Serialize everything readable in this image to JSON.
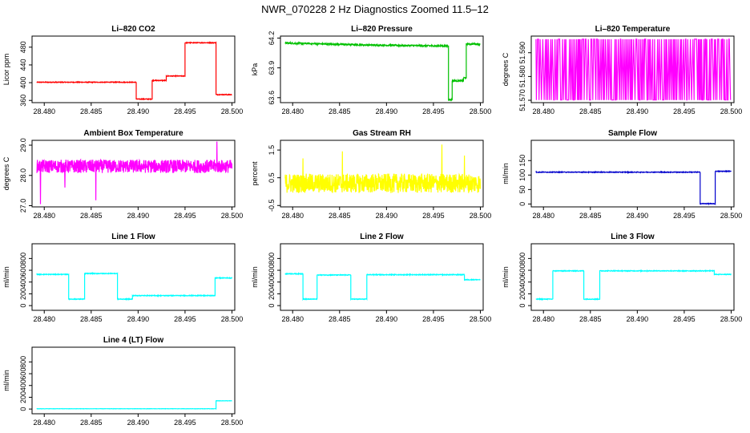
{
  "title": "NWR_070228  2 Hz Diagnostics Zoomed 11.5–12",
  "chart_data": [
    {
      "type": "line",
      "title": "Li–820 CO2",
      "ylabel": "Licor ppm",
      "color": "#ff0000",
      "xlim": [
        28.4787,
        28.5003
      ],
      "ylim": [
        355,
        505
      ],
      "yticks": [
        360,
        400,
        440,
        480
      ],
      "xticks": [
        28.48,
        28.485,
        28.49,
        28.495,
        28.5
      ],
      "xticklabels": [
        "28.480",
        "28.485",
        "28.490",
        "28.495",
        "28.500"
      ],
      "noise": 0.8,
      "segments": [
        {
          "x0": 28.4792,
          "x1": 28.4898,
          "y": 401
        },
        {
          "x0": 28.4898,
          "x1": 28.4915,
          "y": 363
        },
        {
          "x0": 28.4915,
          "x1": 28.493,
          "y": 405
        },
        {
          "x0": 28.493,
          "x1": 28.495,
          "y": 415
        },
        {
          "x0": 28.495,
          "x1": 28.4983,
          "y": 490
        },
        {
          "x0": 28.4983,
          "x1": 28.5,
          "y": 373
        }
      ]
    },
    {
      "type": "line",
      "title": "Li–820 Pressure",
      "ylabel": "kPa",
      "color": "#00c000",
      "xlim": [
        28.4787,
        28.5003
      ],
      "ylim": [
        63.55,
        64.22
      ],
      "yticks": [
        63.6,
        63.9,
        64.2
      ],
      "xticks": [
        28.48,
        28.485,
        28.49,
        28.495,
        28.5
      ],
      "xticklabels": [
        "28.480",
        "28.485",
        "28.490",
        "28.495",
        "28.500"
      ],
      "noise": 0.008,
      "segments": [
        {
          "x0": 28.4792,
          "x1": 28.488,
          "y0": 64.15,
          "y1": 64.13
        },
        {
          "x0": 28.488,
          "x1": 28.4966,
          "y0": 64.13,
          "y1": 64.12
        },
        {
          "x0": 28.4966,
          "x1": 28.497,
          "y": 63.58
        },
        {
          "x0": 28.497,
          "x1": 28.4982,
          "y": 63.77
        },
        {
          "x0": 28.4982,
          "x1": 28.4985,
          "y": 63.8
        },
        {
          "x0": 28.4985,
          "x1": 28.5,
          "y": 64.14
        }
      ]
    },
    {
      "type": "line",
      "title": "Li–820 Temperature",
      "ylabel": "degrees C",
      "color": "#ff00ff",
      "xlim": [
        28.4787,
        28.5003
      ],
      "ylim": [
        51.569,
        51.597
      ],
      "yticks": [
        51.57,
        51.58,
        51.59
      ],
      "yticklabels": [
        "51.570",
        "51.580",
        "51.590"
      ],
      "xticks": [
        28.48,
        28.485,
        28.49,
        28.495,
        28.5
      ],
      "xticklabels": [
        "28.480",
        "28.485",
        "28.490",
        "28.495",
        "28.500"
      ],
      "pattern": "toggle",
      "low": 51.5701,
      "high": 51.5957
    },
    {
      "type": "line",
      "title": "Ambient Box Temperature",
      "ylabel": "degrees C",
      "color": "#ff00ff",
      "xlim": [
        28.4787,
        28.5003
      ],
      "ylim": [
        26.96,
        29.16
      ],
      "yticks": [
        27.0,
        28.0,
        29.0
      ],
      "yticklabels": [
        "27.0",
        "28.0",
        "29.0"
      ],
      "xticks": [
        28.48,
        28.485,
        28.49,
        28.495,
        28.5
      ],
      "xticklabels": [
        "28.480",
        "28.485",
        "28.490",
        "28.495",
        "28.500"
      ],
      "noise": 0.22,
      "spikes": [
        [
          28.4796,
          27.05
        ],
        [
          28.4855,
          27.18
        ],
        [
          28.4984,
          29.12
        ],
        [
          28.4822,
          27.6
        ]
      ],
      "segments": [
        {
          "x0": 28.4792,
          "x1": 28.5,
          "y": 28.3
        }
      ]
    },
    {
      "type": "line",
      "title": "Gas Stream RH",
      "ylabel": "percent",
      "color": "#ffff00",
      "xlim": [
        28.4787,
        28.5003
      ],
      "ylim": [
        -0.55,
        1.85
      ],
      "yticks": [
        -0.5,
        0.5,
        1.5
      ],
      "yticklabels": [
        "-0.5",
        "0.5",
        "1.5"
      ],
      "xticks": [
        28.48,
        28.485,
        28.49,
        28.495,
        28.5
      ],
      "xticklabels": [
        "28.480",
        "28.485",
        "28.490",
        "28.495",
        "28.500"
      ],
      "noise": 0.35,
      "spikes": [
        [
          28.4959,
          1.7
        ],
        [
          28.4853,
          1.45
        ],
        [
          28.4811,
          1.2
        ],
        [
          28.4983,
          1.3
        ]
      ],
      "segments": [
        {
          "x0": 28.4792,
          "x1": 28.5,
          "y": 0.3
        }
      ]
    },
    {
      "type": "line",
      "title": "Sample Flow",
      "ylabel": "ml/min",
      "color": "#0000cc",
      "xlim": [
        28.4787,
        28.5003
      ],
      "ylim": [
        -10,
        220
      ],
      "yticks": [
        0,
        50,
        100,
        150
      ],
      "xticks": [
        28.48,
        28.485,
        28.49,
        28.495,
        28.5
      ],
      "xticklabels": [
        "28.480",
        "28.485",
        "28.490",
        "28.495",
        "28.500"
      ],
      "noise": 1.2,
      "segments": [
        {
          "x0": 28.4792,
          "x1": 28.4967,
          "y": 110
        },
        {
          "x0": 28.4967,
          "x1": 28.4983,
          "y": 1
        },
        {
          "x0": 28.4983,
          "x1": 28.5,
          "y": 113
        }
      ]
    },
    {
      "type": "line",
      "title": "Line 1 Flow",
      "ylabel": "ml/min",
      "color": "#00ffff",
      "xlim": [
        28.4787,
        28.5003
      ],
      "ylim": [
        -80,
        1050
      ],
      "yticks": [
        0,
        200,
        400,
        600,
        800
      ],
      "xticks": [
        28.48,
        28.485,
        28.49,
        28.495,
        28.5
      ],
      "xticklabels": [
        "28.480",
        "28.485",
        "28.490",
        "28.495",
        "28.500"
      ],
      "noise": 6,
      "segments": [
        {
          "x0": 28.4792,
          "x1": 28.4826,
          "y": 530
        },
        {
          "x0": 28.4826,
          "x1": 28.4843,
          "y": 110
        },
        {
          "x0": 28.4843,
          "x1": 28.4878,
          "y": 545
        },
        {
          "x0": 28.4878,
          "x1": 28.4894,
          "y": 110
        },
        {
          "x0": 28.4894,
          "x1": 28.4982,
          "y": 170
        },
        {
          "x0": 28.4982,
          "x1": 28.5,
          "y": 470
        }
      ]
    },
    {
      "type": "line",
      "title": "Line 2 Flow",
      "ylabel": "ml/min",
      "color": "#00ffff",
      "xlim": [
        28.4787,
        28.5003
      ],
      "ylim": [
        -80,
        1050
      ],
      "yticks": [
        0,
        200,
        400,
        600,
        800
      ],
      "xticks": [
        28.48,
        28.485,
        28.49,
        28.495,
        28.5
      ],
      "xticklabels": [
        "28.480",
        "28.485",
        "28.490",
        "28.495",
        "28.500"
      ],
      "noise": 6,
      "segments": [
        {
          "x0": 28.4792,
          "x1": 28.4811,
          "y": 540
        },
        {
          "x0": 28.4811,
          "x1": 28.4826,
          "y": 110
        },
        {
          "x0": 28.4826,
          "x1": 28.4862,
          "y": 520
        },
        {
          "x0": 28.4862,
          "x1": 28.4879,
          "y": 110
        },
        {
          "x0": 28.4879,
          "x1": 28.4983,
          "y": 525
        },
        {
          "x0": 28.4983,
          "x1": 28.5,
          "y": 440
        }
      ]
    },
    {
      "type": "line",
      "title": "Line 3 Flow",
      "ylabel": "ml/min",
      "color": "#00ffff",
      "xlim": [
        28.4787,
        28.5003
      ],
      "ylim": [
        -80,
        1050
      ],
      "yticks": [
        0,
        200,
        400,
        600,
        800
      ],
      "xticks": [
        28.48,
        28.485,
        28.49,
        28.495,
        28.5
      ],
      "xticklabels": [
        "28.480",
        "28.485",
        "28.490",
        "28.495",
        "28.500"
      ],
      "noise": 6,
      "segments": [
        {
          "x0": 28.4792,
          "x1": 28.481,
          "y": 110
        },
        {
          "x0": 28.481,
          "x1": 28.4843,
          "y": 590
        },
        {
          "x0": 28.4843,
          "x1": 28.486,
          "y": 110
        },
        {
          "x0": 28.486,
          "x1": 28.4982,
          "y": 590
        },
        {
          "x0": 28.4982,
          "x1": 28.5,
          "y": 530
        }
      ]
    },
    {
      "type": "line",
      "title": "Line 4 (LT) Flow",
      "ylabel": "ml/min",
      "color": "#00ffff",
      "xlim": [
        28.4787,
        28.5003
      ],
      "ylim": [
        -80,
        1050
      ],
      "yticks": [
        0,
        200,
        400,
        600,
        800
      ],
      "xticks": [
        28.48,
        28.485,
        28.49,
        28.495,
        28.5
      ],
      "xticklabels": [
        "28.480",
        "28.485",
        "28.490",
        "28.495",
        "28.500"
      ],
      "noise": 2,
      "segments": [
        {
          "x0": 28.4792,
          "x1": 28.4983,
          "y": 5
        },
        {
          "x0": 28.4983,
          "x1": 28.5,
          "y": 140
        }
      ]
    }
  ]
}
